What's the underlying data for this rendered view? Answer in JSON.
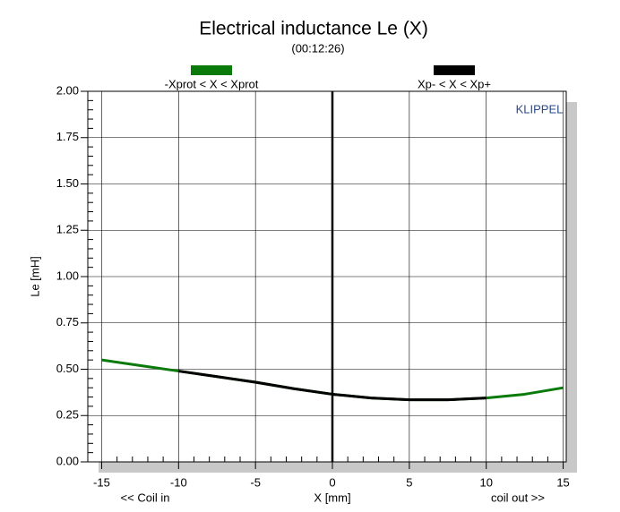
{
  "chart_data": {
    "type": "line",
    "title": "Electrical inductance Le (X)",
    "subtitle": "(00:12:26)",
    "xlabel": "X [mm]",
    "ylabel": "Le [mH]",
    "annotations": [
      "<< Coil in",
      "coil out >>",
      "KLIPPEL"
    ],
    "series": [
      {
        "name": "-Xprot < X < Xprot",
        "color": "#0a7a0a",
        "x": [
          -15,
          -12.5,
          -10,
          -7.5,
          -5,
          -2.5,
          0,
          2.5,
          5,
          7.5,
          10,
          12.5,
          15
        ],
        "values": [
          0.55,
          0.52,
          0.49,
          0.46,
          0.43,
          0.395,
          0.365,
          0.345,
          0.335,
          0.335,
          0.345,
          0.365,
          0.4
        ]
      },
      {
        "name": "Xp- < X < Xp+",
        "color": "#000000",
        "x": [
          -10,
          -7.5,
          -5,
          -2.5,
          0,
          2.5,
          5,
          7.5,
          10
        ],
        "values": [
          0.49,
          0.46,
          0.43,
          0.395,
          0.365,
          0.345,
          0.335,
          0.335,
          0.345
        ]
      }
    ],
    "xlim": [
      -15.9,
      15.2
    ],
    "xticks": [
      -15,
      -10,
      -5,
      0,
      5,
      10,
      15
    ],
    "ylim": [
      0,
      2
    ],
    "yticks": [
      {
        "value": 0,
        "label": "0.00"
      },
      {
        "value": 0.25,
        "label": "0.25"
      },
      {
        "value": 0.5,
        "label": "0.50"
      },
      {
        "value": 0.75,
        "label": "0.75"
      },
      {
        "value": 1,
        "label": "1.00"
      },
      {
        "value": 1.25,
        "label": "1.25"
      },
      {
        "value": 1.5,
        "label": "1.50"
      },
      {
        "value": 1.75,
        "label": "1.75"
      },
      {
        "value": 2,
        "label": "2.00"
      }
    ],
    "grid": true
  }
}
